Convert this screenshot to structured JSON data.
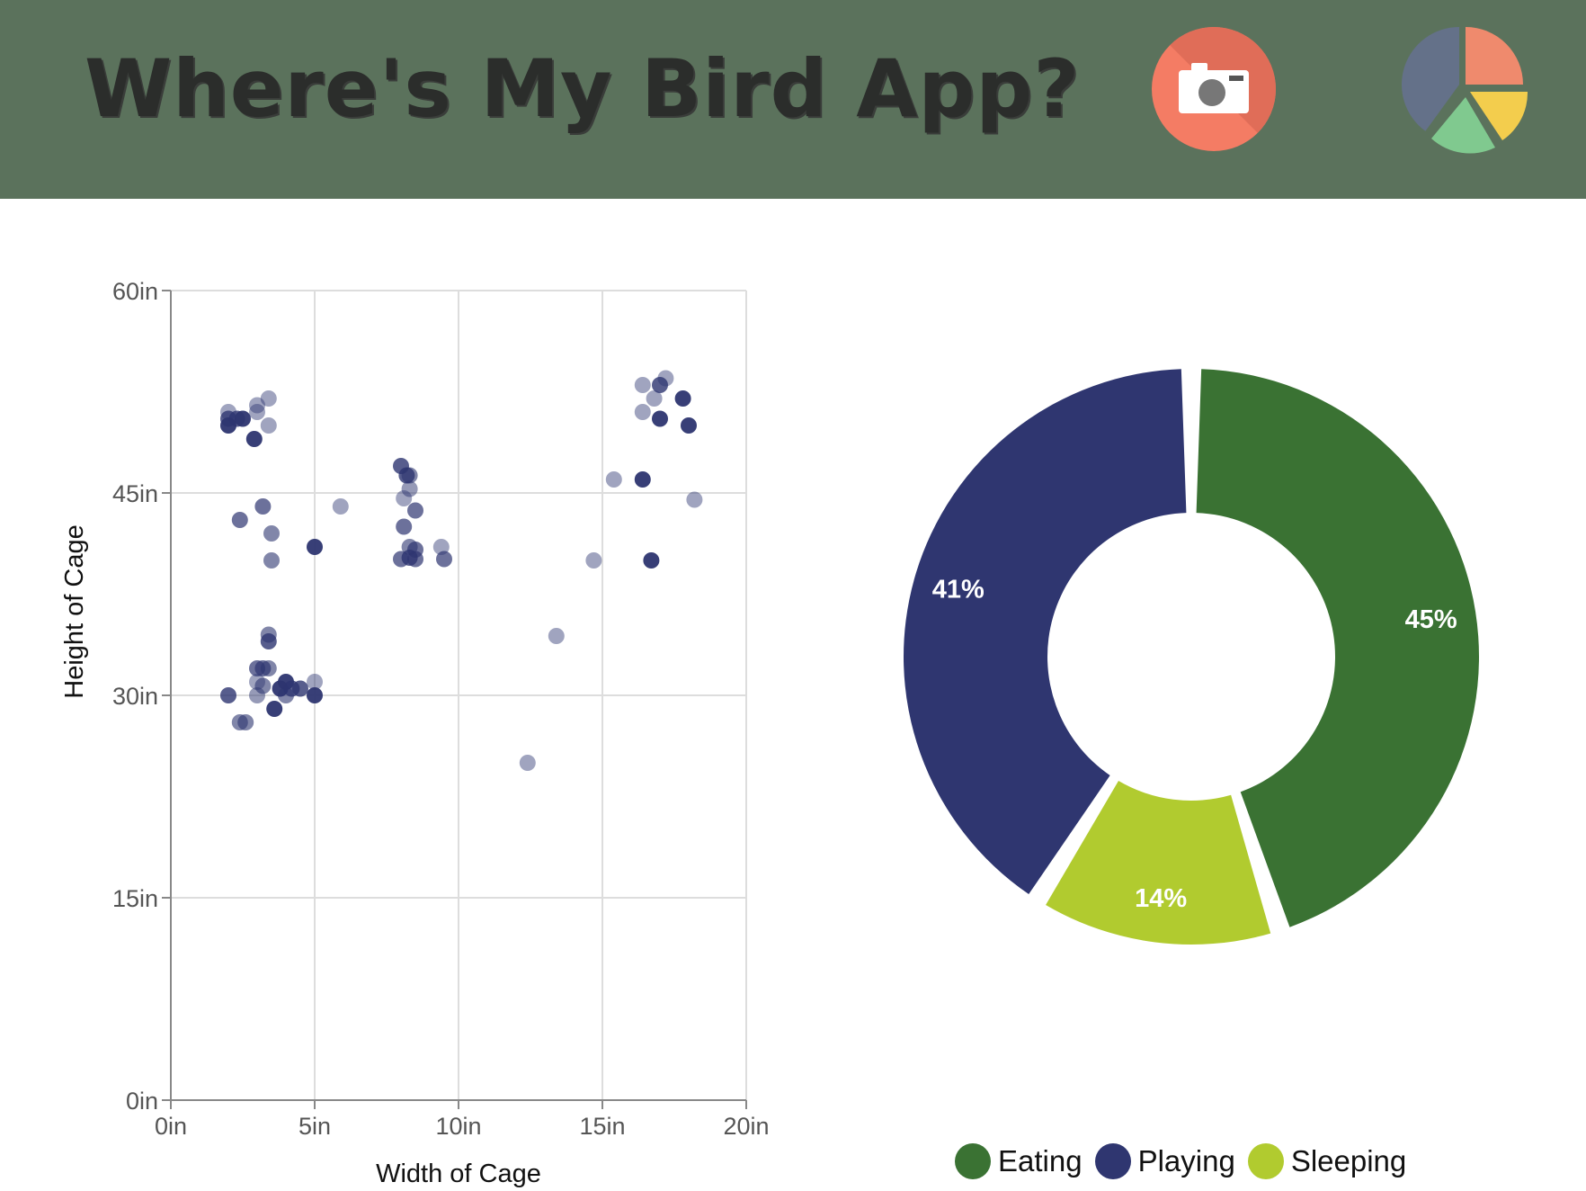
{
  "header": {
    "title": "Where's My Bird App?",
    "background_color": "#5b725c",
    "camera_button_icon": "camera-icon",
    "camera_button_color": "#f47c64",
    "chart_button_icon": "pie-chart-icon"
  },
  "chart_data": [
    {
      "type": "scatter",
      "title": "",
      "xlabel": "Width of Cage",
      "ylabel": "Height of Cage",
      "xlim": [
        0,
        20
      ],
      "ylim": [
        0,
        60
      ],
      "x_ticks": [
        "0in",
        "5in",
        "10in",
        "15in",
        "20in"
      ],
      "y_ticks": [
        "0in",
        "15in",
        "30in",
        "45in",
        "60in"
      ],
      "grid": true,
      "point_color": "#2d3570",
      "points": [
        {
          "x": 2.0,
          "y": 51.0,
          "opacity": 0.45
        },
        {
          "x": 2.0,
          "y": 50.5,
          "opacity": 0.8
        },
        {
          "x": 2.0,
          "y": 50.0,
          "opacity": 0.95
        },
        {
          "x": 2.3,
          "y": 50.5,
          "opacity": 0.8
        },
        {
          "x": 2.5,
          "y": 50.5,
          "opacity": 0.95
        },
        {
          "x": 3.0,
          "y": 51.5,
          "opacity": 0.45
        },
        {
          "x": 3.0,
          "y": 51.0,
          "opacity": 0.45
        },
        {
          "x": 3.4,
          "y": 52.0,
          "opacity": 0.45
        },
        {
          "x": 3.4,
          "y": 50.0,
          "opacity": 0.45
        },
        {
          "x": 2.9,
          "y": 49.0,
          "opacity": 0.95
        },
        {
          "x": 3.2,
          "y": 44.0,
          "opacity": 0.7
        },
        {
          "x": 2.4,
          "y": 43.0,
          "opacity": 0.7
        },
        {
          "x": 3.5,
          "y": 42.0,
          "opacity": 0.6
        },
        {
          "x": 3.5,
          "y": 40.0,
          "opacity": 0.6
        },
        {
          "x": 5.0,
          "y": 41.0,
          "opacity": 0.95
        },
        {
          "x": 5.9,
          "y": 44.0,
          "opacity": 0.45
        },
        {
          "x": 3.4,
          "y": 34.5,
          "opacity": 0.6
        },
        {
          "x": 3.4,
          "y": 34.0,
          "opacity": 0.8
        },
        {
          "x": 3.0,
          "y": 32.0,
          "opacity": 0.7
        },
        {
          "x": 3.2,
          "y": 32.0,
          "opacity": 0.7
        },
        {
          "x": 3.4,
          "y": 32.0,
          "opacity": 0.6
        },
        {
          "x": 3.0,
          "y": 31.0,
          "opacity": 0.45
        },
        {
          "x": 3.2,
          "y": 30.7,
          "opacity": 0.6
        },
        {
          "x": 3.0,
          "y": 30.0,
          "opacity": 0.5
        },
        {
          "x": 2.0,
          "y": 30.0,
          "opacity": 0.8
        },
        {
          "x": 3.8,
          "y": 30.5,
          "opacity": 0.95
        },
        {
          "x": 4.0,
          "y": 31.0,
          "opacity": 0.95
        },
        {
          "x": 4.0,
          "y": 30.0,
          "opacity": 0.6
        },
        {
          "x": 4.2,
          "y": 30.5,
          "opacity": 0.8
        },
        {
          "x": 4.5,
          "y": 30.5,
          "opacity": 0.8
        },
        {
          "x": 5.0,
          "y": 31.0,
          "opacity": 0.45
        },
        {
          "x": 5.0,
          "y": 30.0,
          "opacity": 0.95
        },
        {
          "x": 3.6,
          "y": 29.0,
          "opacity": 0.95
        },
        {
          "x": 2.4,
          "y": 28.0,
          "opacity": 0.6
        },
        {
          "x": 2.6,
          "y": 28.0,
          "opacity": 0.6
        },
        {
          "x": 8.0,
          "y": 47.0,
          "opacity": 0.8
        },
        {
          "x": 8.2,
          "y": 46.3,
          "opacity": 0.8
        },
        {
          "x": 8.3,
          "y": 46.3,
          "opacity": 0.6
        },
        {
          "x": 8.3,
          "y": 45.3,
          "opacity": 0.5
        },
        {
          "x": 8.1,
          "y": 44.6,
          "opacity": 0.45
        },
        {
          "x": 8.5,
          "y": 43.7,
          "opacity": 0.7
        },
        {
          "x": 8.1,
          "y": 42.5,
          "opacity": 0.7
        },
        {
          "x": 8.3,
          "y": 41.0,
          "opacity": 0.6
        },
        {
          "x": 8.5,
          "y": 40.8,
          "opacity": 0.7
        },
        {
          "x": 8.0,
          "y": 40.1,
          "opacity": 0.7
        },
        {
          "x": 8.3,
          "y": 40.2,
          "opacity": 0.8
        },
        {
          "x": 8.5,
          "y": 40.1,
          "opacity": 0.7
        },
        {
          "x": 9.4,
          "y": 41.0,
          "opacity": 0.45
        },
        {
          "x": 9.5,
          "y": 40.1,
          "opacity": 0.7
        },
        {
          "x": 12.4,
          "y": 25.0,
          "opacity": 0.45
        },
        {
          "x": 13.4,
          "y": 34.4,
          "opacity": 0.45
        },
        {
          "x": 14.7,
          "y": 40.0,
          "opacity": 0.45
        },
        {
          "x": 15.4,
          "y": 46.0,
          "opacity": 0.45
        },
        {
          "x": 16.4,
          "y": 46.0,
          "opacity": 0.95
        },
        {
          "x": 16.4,
          "y": 53.0,
          "opacity": 0.45
        },
        {
          "x": 16.4,
          "y": 51.0,
          "opacity": 0.45
        },
        {
          "x": 16.8,
          "y": 52.0,
          "opacity": 0.45
        },
        {
          "x": 17.0,
          "y": 53.0,
          "opacity": 0.8
        },
        {
          "x": 17.2,
          "y": 53.5,
          "opacity": 0.45
        },
        {
          "x": 17.0,
          "y": 50.5,
          "opacity": 0.95
        },
        {
          "x": 17.8,
          "y": 52.0,
          "opacity": 0.95
        },
        {
          "x": 18.0,
          "y": 50.0,
          "opacity": 0.95
        },
        {
          "x": 18.2,
          "y": 44.5,
          "opacity": 0.45
        },
        {
          "x": 16.7,
          "y": 40.0,
          "opacity": 0.95
        }
      ]
    },
    {
      "type": "pie",
      "title": "",
      "donut": true,
      "slices": [
        {
          "name": "Eating",
          "label": "45%",
          "value": 45,
          "color": "#3a7233"
        },
        {
          "name": "Sleeping",
          "label": "14%",
          "value": 14,
          "color": "#b1cb2f"
        },
        {
          "name": "Playing",
          "label": "41%",
          "value": 41,
          "color": "#2f3670"
        }
      ],
      "legend_position": "bottom"
    }
  ],
  "legend": [
    {
      "label": "Eating",
      "color": "#3a7233"
    },
    {
      "label": "Playing",
      "color": "#2f3670"
    },
    {
      "label": "Sleeping",
      "color": "#b1cb2f"
    }
  ]
}
